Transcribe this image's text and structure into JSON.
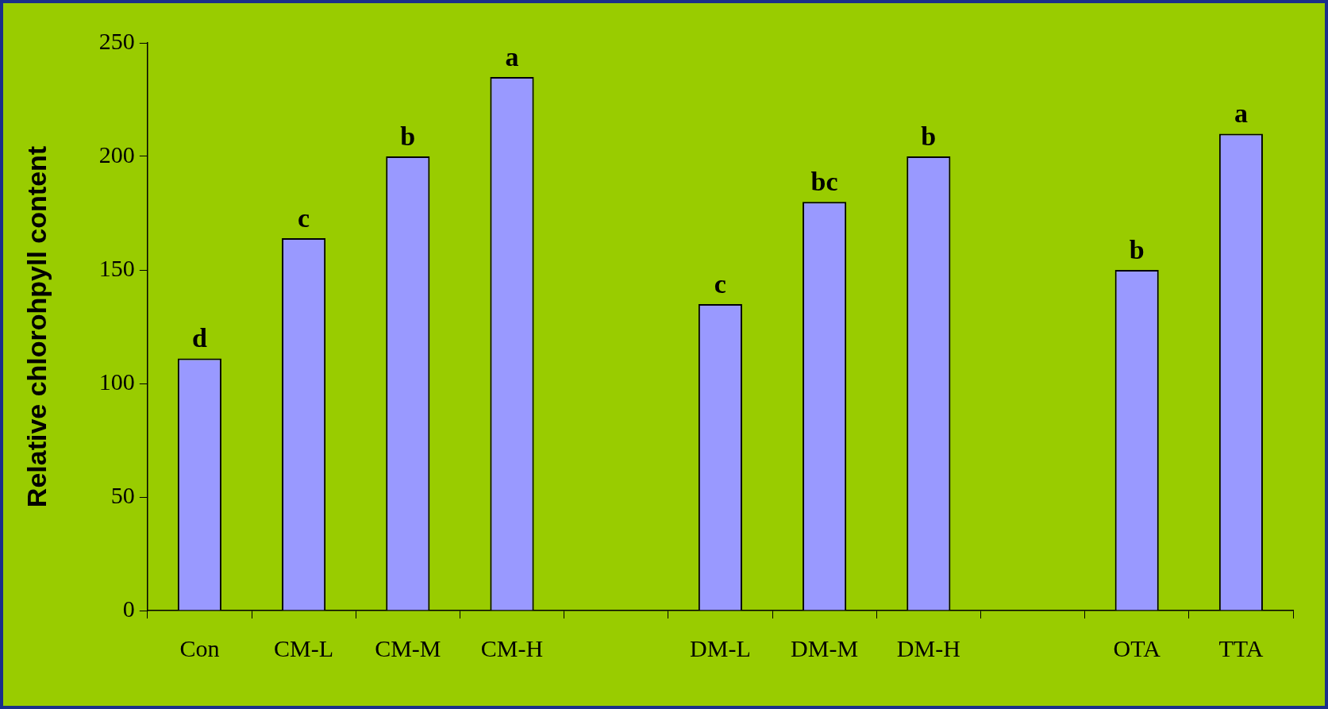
{
  "chart_data": {
    "type": "bar",
    "ylabel": "Relative chlorohpyll content",
    "categories": [
      "Con",
      "CM-L",
      "CM-M",
      "CM-H",
      null,
      "DM-L",
      "DM-M",
      "DM-H",
      null,
      "OTA",
      "TTA"
    ],
    "values": [
      111,
      164,
      200,
      235,
      null,
      135,
      180,
      200,
      null,
      150,
      210
    ],
    "color": "#9999ff",
    "ylim": [
      0,
      250
    ],
    "yticks": [
      0,
      50,
      100,
      150,
      200,
      250
    ],
    "grid": false,
    "legend": false,
    "annotations": [
      {
        "text": "d",
        "x": "Con",
        "y": 111
      },
      {
        "text": "c",
        "x": "CM-L",
        "y": 164
      },
      {
        "text": "b",
        "x": "CM-M",
        "y": 200
      },
      {
        "text": "a",
        "x": "CM-H",
        "y": 235
      },
      {
        "text": "c",
        "x": "DM-L",
        "y": 135
      },
      {
        "text": "bc",
        "x": "DM-M",
        "y": 180
      },
      {
        "text": "b",
        "x": "DM-H",
        "y": 200
      },
      {
        "text": "b",
        "x": "OTA",
        "y": 150
      },
      {
        "text": "a",
        "x": "TTA",
        "y": 210
      }
    ]
  }
}
